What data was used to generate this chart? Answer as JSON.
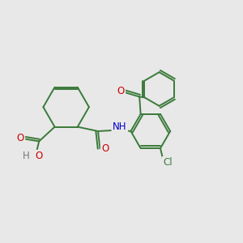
{
  "background_color": "#e8e8e8",
  "bond_color": "#3a7a3a",
  "bond_width": 1.4,
  "atom_colors": {
    "O": "#cc0000",
    "N": "#0000cc",
    "Cl": "#3a7a3a",
    "H": "#777777"
  },
  "font_size": 8.5,
  "fig_width": 3.0,
  "fig_height": 3.0,
  "dpi": 100
}
